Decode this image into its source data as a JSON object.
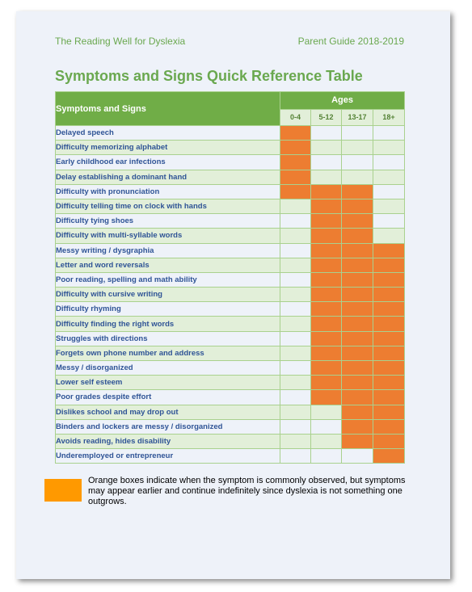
{
  "header": {
    "left": "The Reading Well for Dyslexia",
    "right": "Parent Guide 2018-2019"
  },
  "title": "Symptoms and Signs Quick Reference Table",
  "table": {
    "symptoms_header": "Symptoms and Signs",
    "ages_header": "Ages",
    "age_groups": [
      "0-4",
      "5-12",
      "13-17",
      "18+"
    ],
    "rows": [
      {
        "label": "Delayed speech",
        "ages": [
          true,
          false,
          false,
          false
        ]
      },
      {
        "label": "Difficulty memorizing alphabet",
        "ages": [
          true,
          false,
          false,
          false
        ]
      },
      {
        "label": "Early childhood ear infections",
        "ages": [
          true,
          false,
          false,
          false
        ]
      },
      {
        "label": "Delay establishing a dominant hand",
        "ages": [
          true,
          false,
          false,
          false
        ]
      },
      {
        "label": "Difficulty with pronunciation",
        "ages": [
          true,
          true,
          true,
          false
        ]
      },
      {
        "label": "Difficulty telling time on clock with hands",
        "ages": [
          false,
          true,
          true,
          false
        ]
      },
      {
        "label": "Difficulty tying shoes",
        "ages": [
          false,
          true,
          true,
          false
        ]
      },
      {
        "label": "Difficulty with multi-syllable words",
        "ages": [
          false,
          true,
          true,
          false
        ]
      },
      {
        "label": "Messy writing / dysgraphia",
        "ages": [
          false,
          true,
          true,
          true
        ]
      },
      {
        "label": "Letter and word reversals",
        "ages": [
          false,
          true,
          true,
          true
        ]
      },
      {
        "label": "Poor reading, spelling and math ability",
        "ages": [
          false,
          true,
          true,
          true
        ]
      },
      {
        "label": "Difficulty with cursive writing",
        "ages": [
          false,
          true,
          true,
          true
        ]
      },
      {
        "label": "Difficulty rhyming",
        "ages": [
          false,
          true,
          true,
          true
        ]
      },
      {
        "label": "Difficulty finding the right words",
        "ages": [
          false,
          true,
          true,
          true
        ]
      },
      {
        "label": "Struggles with directions",
        "ages": [
          false,
          true,
          true,
          true
        ]
      },
      {
        "label": "Forgets own phone number and address",
        "ages": [
          false,
          true,
          true,
          true
        ]
      },
      {
        "label": "Messy / disorganized",
        "ages": [
          false,
          true,
          true,
          true
        ]
      },
      {
        "label": "Lower self esteem",
        "ages": [
          false,
          true,
          true,
          true
        ]
      },
      {
        "label": "Poor grades despite effort",
        "ages": [
          false,
          true,
          true,
          true
        ]
      },
      {
        "label": "Dislikes school and may drop out",
        "ages": [
          false,
          false,
          true,
          true
        ]
      },
      {
        "label": "Binders and lockers are messy / disorganized",
        "ages": [
          false,
          false,
          true,
          true
        ]
      },
      {
        "label": "Avoids reading, hides disability",
        "ages": [
          false,
          false,
          true,
          true
        ]
      },
      {
        "label": "Underemployed or entrepreneur",
        "ages": [
          false,
          false,
          false,
          true
        ]
      }
    ]
  },
  "legend": {
    "text": "Orange boxes indicate when the symptom is commonly observed, but symptoms may appear earlier and continue indefinitely since dyslexia is not something one outgrows.",
    "color": "#ff9900"
  },
  "colors": {
    "accent_green": "#6aa84f",
    "header_green": "#70ad47",
    "highlight_orange": "#ed7d31",
    "symptom_text_blue": "#2f5496"
  }
}
